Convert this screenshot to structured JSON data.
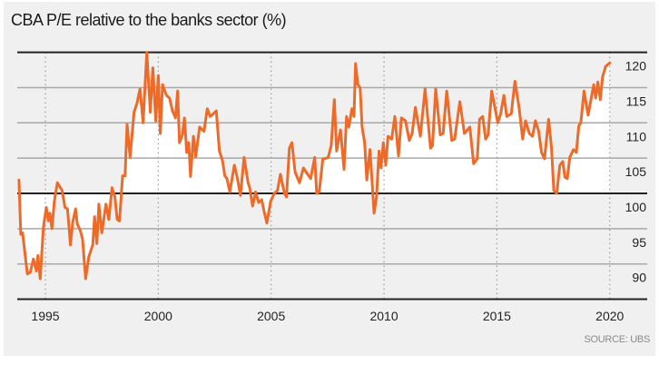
{
  "chart_data": {
    "type": "line",
    "title": "CBA P/E relative to the banks sector (%)",
    "source": "SOURCE: UBS",
    "xlabel": "",
    "ylabel": "",
    "xlim": [
      1993.83,
      2020.0
    ],
    "ylim": [
      85,
      120
    ],
    "baseline": 100,
    "grid": true,
    "x_ticks": [
      1995,
      2000,
      2005,
      2010,
      2015,
      2020
    ],
    "x_tick_labels": [
      "1995",
      "2000",
      "2005",
      "2010",
      "2015",
      "2020"
    ],
    "y_ticks": [
      120,
      115,
      110,
      105,
      100,
      95,
      90
    ],
    "y_tick_labels": [
      "120",
      "115",
      "110",
      "105",
      "100",
      "95",
      "90"
    ],
    "colors": {
      "line": "#ee6a28",
      "fill": "#ffffff",
      "background": "#f0f0f0"
    },
    "series": [
      {
        "name": "CBA P/E relative to banks sector",
        "x": [
          1993.83,
          1993.91,
          1993.99,
          1994.2,
          1994.33,
          1994.47,
          1994.6,
          1994.67,
          1994.77,
          1994.91,
          1995.04,
          1995.13,
          1995.2,
          1995.29,
          1995.4,
          1995.53,
          1995.74,
          1995.87,
          1995.98,
          1996.11,
          1996.21,
          1996.34,
          1996.41,
          1996.54,
          1996.65,
          1996.78,
          1996.92,
          1997.1,
          1997.18,
          1997.28,
          1997.37,
          1997.5,
          1997.68,
          1997.81,
          1997.95,
          1998.08,
          1998.18,
          1998.28,
          1998.42,
          1998.53,
          1998.62,
          1998.75,
          1998.93,
          1999.06,
          1999.19,
          1999.33,
          1999.49,
          1999.65,
          1999.76,
          1999.89,
          2000.0,
          2000.09,
          2000.19,
          2000.36,
          2000.5,
          2000.63,
          2000.76,
          2000.86,
          2000.94,
          2001.07,
          2001.16,
          2001.26,
          2001.35,
          2001.43,
          2001.56,
          2001.66,
          2001.83,
          2002.03,
          2002.17,
          2002.3,
          2002.57,
          2002.71,
          2002.84,
          2002.95,
          2003.04,
          2003.17,
          2003.37,
          2003.51,
          2003.64,
          2003.8,
          2003.98,
          2004.05,
          2004.18,
          2004.31,
          2004.45,
          2004.58,
          2004.69,
          2004.81,
          2004.98,
          2005.14,
          2005.28,
          2005.41,
          2005.59,
          2005.68,
          2005.81,
          2005.92,
          2006.06,
          2006.26,
          2006.43,
          2006.62,
          2006.75,
          2006.93,
          2007.02,
          2007.13,
          2007.29,
          2007.37,
          2007.53,
          2007.66,
          2007.8,
          2007.9,
          2008.07,
          2008.23,
          2008.34,
          2008.44,
          2008.58,
          2008.67,
          2008.74,
          2008.84,
          2008.94,
          2009.03,
          2009.14,
          2009.24,
          2009.38,
          2009.47,
          2009.56,
          2009.67,
          2009.78,
          2009.87,
          2009.97,
          2010.08,
          2010.18,
          2010.34,
          2010.48,
          2010.64,
          2010.77,
          2010.95,
          2011.12,
          2011.25,
          2011.39,
          2011.61,
          2011.82,
          2012.06,
          2012.15,
          2012.29,
          2012.49,
          2012.62,
          2012.78,
          2013.0,
          2013.13,
          2013.36,
          2013.56,
          2013.8,
          2013.97,
          2014.13,
          2014.23,
          2014.37,
          2014.5,
          2014.61,
          2014.77,
          2014.9,
          2015.04,
          2015.17,
          2015.31,
          2015.44,
          2015.64,
          2015.8,
          2015.98,
          2016.14,
          2016.27,
          2016.44,
          2016.58,
          2016.71,
          2016.85,
          2016.98,
          2017.11,
          2017.29,
          2017.42,
          2017.52,
          2017.65,
          2017.79,
          2017.92,
          2018.01,
          2018.12,
          2018.23,
          2018.39,
          2018.52,
          2018.63,
          2018.72,
          2018.86,
          2019.04,
          2019.29,
          2019.38,
          2019.47,
          2019.58,
          2019.68,
          2019.82,
          2020.0
        ],
        "y": [
          101.9,
          94.2,
          94.4,
          88.6,
          88.8,
          90.7,
          89.0,
          91.2,
          87.9,
          95.2,
          98.0,
          96.1,
          97.2,
          95.0,
          98.9,
          101.5,
          100.4,
          98.0,
          97.8,
          92.7,
          95.9,
          97.8,
          95.7,
          94.8,
          93.5,
          87.9,
          91.0,
          92.7,
          96.7,
          92.9,
          98.5,
          94.4,
          98.5,
          96.3,
          100.8,
          99.5,
          96.3,
          96.1,
          102.5,
          102.5,
          109.8,
          105.1,
          111.5,
          112.8,
          114.8,
          110.0,
          120.0,
          111.5,
          117.8,
          110.3,
          116.7,
          108.5,
          115.4,
          113.9,
          113.5,
          111.7,
          110.7,
          114.5,
          107.2,
          108.3,
          110.7,
          105.8,
          107.2,
          102.4,
          108.1,
          105.2,
          109.4,
          108.8,
          112.0,
          110.9,
          111.7,
          106.0,
          104.7,
          102.5,
          102.1,
          100.2,
          104.0,
          102.1,
          99.7,
          105.1,
          101.5,
          100.8,
          98.2,
          100.2,
          98.7,
          99.1,
          97.4,
          95.8,
          98.9,
          100.0,
          100.4,
          102.7,
          100.0,
          99.5,
          106.4,
          107.2,
          103.0,
          101.5,
          103.6,
          102.7,
          102.1,
          105.1,
          100.0,
          100.2,
          104.9,
          104.9,
          105.1,
          106.8,
          113.3,
          106.0,
          109.0,
          103.4,
          110.9,
          109.4,
          112.0,
          110.9,
          118.4,
          115.4,
          115.0,
          109.4,
          107.2,
          101.9,
          106.2,
          101.7,
          97.2,
          99.5,
          106.0,
          103.6,
          107.2,
          104.0,
          108.1,
          107.7,
          110.9,
          105.3,
          110.7,
          110.3,
          107.5,
          108.5,
          112.2,
          108.1,
          114.8,
          106.4,
          106.8,
          114.8,
          108.3,
          108.5,
          114.5,
          107.5,
          107.7,
          113.0,
          108.5,
          109.4,
          104.2,
          104.9,
          110.5,
          110.9,
          107.7,
          108.3,
          114.5,
          112.4,
          110.0,
          111.3,
          113.9,
          110.9,
          111.3,
          115.9,
          112.2,
          107.7,
          110.3,
          108.5,
          108.1,
          110.3,
          108.8,
          105.8,
          104.9,
          110.5,
          106.4,
          100.4,
          100.0,
          104.0,
          104.5,
          102.3,
          102.1,
          105.1,
          106.2,
          105.8,
          109.6,
          110.0,
          114.5,
          111.1,
          115.4,
          113.5,
          115.8,
          113.3,
          116.5,
          118.0,
          118.5
        ]
      }
    ]
  }
}
